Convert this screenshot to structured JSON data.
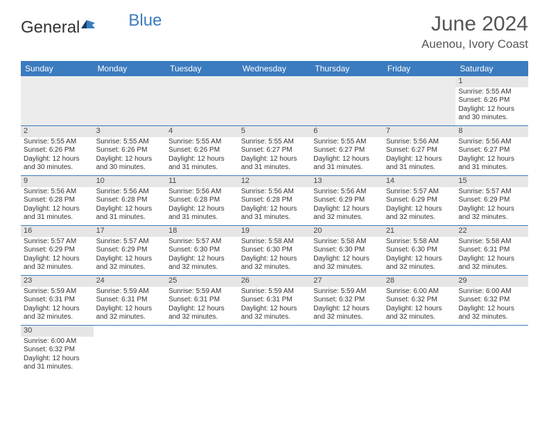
{
  "logo": {
    "text_main": "General",
    "text_accent": "Blue"
  },
  "title": "June 2024",
  "location": "Auenou, Ivory Coast",
  "colors": {
    "header_bg": "#3b7bbf",
    "header_fg": "#ffffff",
    "daynum_bg": "#e6e6e6",
    "blank_bg": "#ececec",
    "border": "#3b7bbf",
    "text": "#333333"
  },
  "typography": {
    "title_fontsize": 30,
    "location_fontsize": 17,
    "dayhead_fontsize": 12,
    "cell_fontsize": 10
  },
  "day_headers": [
    "Sunday",
    "Monday",
    "Tuesday",
    "Wednesday",
    "Thursday",
    "Friday",
    "Saturday"
  ],
  "weeks": [
    [
      null,
      null,
      null,
      null,
      null,
      null,
      {
        "n": "1",
        "sunrise": "Sunrise: 5:55 AM",
        "sunset": "Sunset: 6:26 PM",
        "daylight1": "Daylight: 12 hours",
        "daylight2": "and 30 minutes."
      }
    ],
    [
      {
        "n": "2",
        "sunrise": "Sunrise: 5:55 AM",
        "sunset": "Sunset: 6:26 PM",
        "daylight1": "Daylight: 12 hours",
        "daylight2": "and 30 minutes."
      },
      {
        "n": "3",
        "sunrise": "Sunrise: 5:55 AM",
        "sunset": "Sunset: 6:26 PM",
        "daylight1": "Daylight: 12 hours",
        "daylight2": "and 30 minutes."
      },
      {
        "n": "4",
        "sunrise": "Sunrise: 5:55 AM",
        "sunset": "Sunset: 6:26 PM",
        "daylight1": "Daylight: 12 hours",
        "daylight2": "and 31 minutes."
      },
      {
        "n": "5",
        "sunrise": "Sunrise: 5:55 AM",
        "sunset": "Sunset: 6:27 PM",
        "daylight1": "Daylight: 12 hours",
        "daylight2": "and 31 minutes."
      },
      {
        "n": "6",
        "sunrise": "Sunrise: 5:55 AM",
        "sunset": "Sunset: 6:27 PM",
        "daylight1": "Daylight: 12 hours",
        "daylight2": "and 31 minutes."
      },
      {
        "n": "7",
        "sunrise": "Sunrise: 5:56 AM",
        "sunset": "Sunset: 6:27 PM",
        "daylight1": "Daylight: 12 hours",
        "daylight2": "and 31 minutes."
      },
      {
        "n": "8",
        "sunrise": "Sunrise: 5:56 AM",
        "sunset": "Sunset: 6:27 PM",
        "daylight1": "Daylight: 12 hours",
        "daylight2": "and 31 minutes."
      }
    ],
    [
      {
        "n": "9",
        "sunrise": "Sunrise: 5:56 AM",
        "sunset": "Sunset: 6:28 PM",
        "daylight1": "Daylight: 12 hours",
        "daylight2": "and 31 minutes."
      },
      {
        "n": "10",
        "sunrise": "Sunrise: 5:56 AM",
        "sunset": "Sunset: 6:28 PM",
        "daylight1": "Daylight: 12 hours",
        "daylight2": "and 31 minutes."
      },
      {
        "n": "11",
        "sunrise": "Sunrise: 5:56 AM",
        "sunset": "Sunset: 6:28 PM",
        "daylight1": "Daylight: 12 hours",
        "daylight2": "and 31 minutes."
      },
      {
        "n": "12",
        "sunrise": "Sunrise: 5:56 AM",
        "sunset": "Sunset: 6:28 PM",
        "daylight1": "Daylight: 12 hours",
        "daylight2": "and 31 minutes."
      },
      {
        "n": "13",
        "sunrise": "Sunrise: 5:56 AM",
        "sunset": "Sunset: 6:29 PM",
        "daylight1": "Daylight: 12 hours",
        "daylight2": "and 32 minutes."
      },
      {
        "n": "14",
        "sunrise": "Sunrise: 5:57 AM",
        "sunset": "Sunset: 6:29 PM",
        "daylight1": "Daylight: 12 hours",
        "daylight2": "and 32 minutes."
      },
      {
        "n": "15",
        "sunrise": "Sunrise: 5:57 AM",
        "sunset": "Sunset: 6:29 PM",
        "daylight1": "Daylight: 12 hours",
        "daylight2": "and 32 minutes."
      }
    ],
    [
      {
        "n": "16",
        "sunrise": "Sunrise: 5:57 AM",
        "sunset": "Sunset: 6:29 PM",
        "daylight1": "Daylight: 12 hours",
        "daylight2": "and 32 minutes."
      },
      {
        "n": "17",
        "sunrise": "Sunrise: 5:57 AM",
        "sunset": "Sunset: 6:29 PM",
        "daylight1": "Daylight: 12 hours",
        "daylight2": "and 32 minutes."
      },
      {
        "n": "18",
        "sunrise": "Sunrise: 5:57 AM",
        "sunset": "Sunset: 6:30 PM",
        "daylight1": "Daylight: 12 hours",
        "daylight2": "and 32 minutes."
      },
      {
        "n": "19",
        "sunrise": "Sunrise: 5:58 AM",
        "sunset": "Sunset: 6:30 PM",
        "daylight1": "Daylight: 12 hours",
        "daylight2": "and 32 minutes."
      },
      {
        "n": "20",
        "sunrise": "Sunrise: 5:58 AM",
        "sunset": "Sunset: 6:30 PM",
        "daylight1": "Daylight: 12 hours",
        "daylight2": "and 32 minutes."
      },
      {
        "n": "21",
        "sunrise": "Sunrise: 5:58 AM",
        "sunset": "Sunset: 6:30 PM",
        "daylight1": "Daylight: 12 hours",
        "daylight2": "and 32 minutes."
      },
      {
        "n": "22",
        "sunrise": "Sunrise: 5:58 AM",
        "sunset": "Sunset: 6:31 PM",
        "daylight1": "Daylight: 12 hours",
        "daylight2": "and 32 minutes."
      }
    ],
    [
      {
        "n": "23",
        "sunrise": "Sunrise: 5:59 AM",
        "sunset": "Sunset: 6:31 PM",
        "daylight1": "Daylight: 12 hours",
        "daylight2": "and 32 minutes."
      },
      {
        "n": "24",
        "sunrise": "Sunrise: 5:59 AM",
        "sunset": "Sunset: 6:31 PM",
        "daylight1": "Daylight: 12 hours",
        "daylight2": "and 32 minutes."
      },
      {
        "n": "25",
        "sunrise": "Sunrise: 5:59 AM",
        "sunset": "Sunset: 6:31 PM",
        "daylight1": "Daylight: 12 hours",
        "daylight2": "and 32 minutes."
      },
      {
        "n": "26",
        "sunrise": "Sunrise: 5:59 AM",
        "sunset": "Sunset: 6:31 PM",
        "daylight1": "Daylight: 12 hours",
        "daylight2": "and 32 minutes."
      },
      {
        "n": "27",
        "sunrise": "Sunrise: 5:59 AM",
        "sunset": "Sunset: 6:32 PM",
        "daylight1": "Daylight: 12 hours",
        "daylight2": "and 32 minutes."
      },
      {
        "n": "28",
        "sunrise": "Sunrise: 6:00 AM",
        "sunset": "Sunset: 6:32 PM",
        "daylight1": "Daylight: 12 hours",
        "daylight2": "and 32 minutes."
      },
      {
        "n": "29",
        "sunrise": "Sunrise: 6:00 AM",
        "sunset": "Sunset: 6:32 PM",
        "daylight1": "Daylight: 12 hours",
        "daylight2": "and 32 minutes."
      }
    ],
    [
      {
        "n": "30",
        "sunrise": "Sunrise: 6:00 AM",
        "sunset": "Sunset: 6:32 PM",
        "daylight1": "Daylight: 12 hours",
        "daylight2": "and 31 minutes."
      },
      null,
      null,
      null,
      null,
      null,
      null
    ]
  ]
}
